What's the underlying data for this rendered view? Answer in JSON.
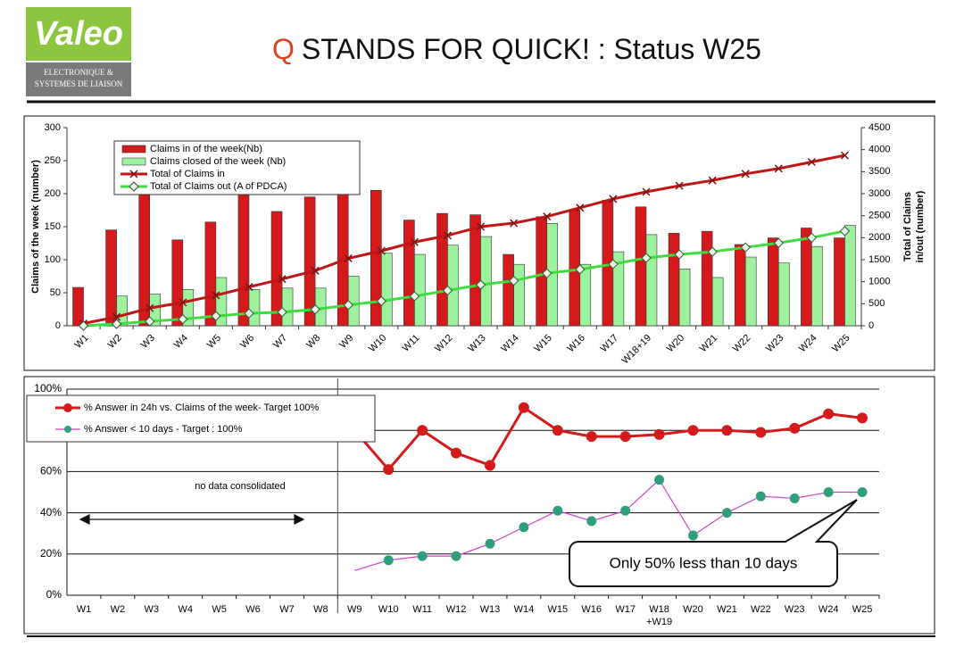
{
  "header": {
    "logo": "Valeo",
    "logo_subtitle": [
      "ELECTRONIQUE &",
      "SYSTEMES DE LIAISON"
    ],
    "title_q": "Q",
    "title_rest": "STANDS FOR QUICK! : Status W25"
  },
  "chart_data": [
    {
      "type": "bar_line",
      "ylabel": "Claims of the week (number)",
      "y2label": [
        "Total of Claims",
        "in/out (number)"
      ],
      "categories": [
        "W1",
        "W2",
        "W3",
        "W4",
        "W5",
        "W6",
        "W7",
        "W8",
        "W9",
        "W10",
        "W11",
        "W12",
        "W13",
        "W14",
        "W15",
        "W16",
        "W17",
        "W18+19",
        "W20",
        "W21",
        "W22",
        "W23",
        "W24",
        "W25"
      ],
      "ylim": [
        0,
        300
      ],
      "yticks": [
        0,
        50,
        100,
        150,
        200,
        250,
        300
      ],
      "y2lim": [
        0,
        4500
      ],
      "y2ticks": [
        0,
        500,
        1000,
        1500,
        2000,
        2500,
        3000,
        3500,
        4000,
        4500
      ],
      "legend": "upper left",
      "series": [
        {
          "name": "Claims in of the week(Nb)",
          "kind": "bar",
          "color": "#d41a1a",
          "values": [
            58,
            145,
            200,
            130,
            157,
            200,
            173,
            195,
            200,
            205,
            160,
            170,
            168,
            108,
            165,
            175,
            190,
            180,
            140,
            143,
            123,
            133,
            148,
            133
          ]
        },
        {
          "name": "Claims closed of the week (Nb)",
          "kind": "bar",
          "color": "#9ef29e",
          "values": [
            0,
            45,
            48,
            55,
            73,
            55,
            57,
            57,
            75,
            110,
            108,
            122,
            135,
            93,
            155,
            93,
            112,
            138,
            86,
            73,
            104,
            95,
            120,
            152
          ]
        },
        {
          "name": "Total of Claims in",
          "kind": "line",
          "axis": "y2",
          "color": "#c01515",
          "marker": "x",
          "values": [
            50,
            200,
            400,
            530,
            690,
            880,
            1060,
            1250,
            1530,
            1700,
            1900,
            2050,
            2250,
            2330,
            2480,
            2680,
            2880,
            3040,
            3180,
            3300,
            3450,
            3570,
            3720,
            3870
          ]
        },
        {
          "name": "Total of Claims out (A of PDCA)",
          "kind": "line",
          "axis": "y2",
          "color": "#3fdc3f",
          "marker": "diamond",
          "values": [
            0,
            40,
            100,
            150,
            220,
            280,
            310,
            370,
            470,
            560,
            670,
            800,
            930,
            1020,
            1190,
            1280,
            1400,
            1540,
            1620,
            1680,
            1780,
            1880,
            2000,
            2150
          ]
        }
      ]
    },
    {
      "type": "line",
      "categories": [
        "W1",
        "W2",
        "W3",
        "W4",
        "W5",
        "W6",
        "W7",
        "W8",
        "W9",
        "W10",
        "W11",
        "W12",
        "W13",
        "W14",
        "W15",
        "W16",
        "W17",
        "W18 +W19",
        "W20",
        "W21",
        "W22",
        "W23",
        "W24",
        "W25"
      ],
      "ylim": [
        0,
        100
      ],
      "yticks": [
        {
          "value": 0,
          "label": "0%"
        },
        {
          "value": 20,
          "label": "20%"
        },
        {
          "value": 40,
          "label": "40%"
        },
        {
          "value": 60,
          "label": "60%"
        },
        {
          "value": 80,
          "label": "80%"
        },
        {
          "value": 100,
          "label": "100%"
        }
      ],
      "grid": true,
      "legend": "upper left",
      "series": [
        {
          "name": "% Answer in 24h vs. Claims of the week- Target 100%",
          "color": "#d41a1a",
          "marker_color": "#d41a1a",
          "values": [
            null,
            null,
            null,
            null,
            null,
            null,
            null,
            null,
            80,
            61,
            80,
            69,
            63,
            91,
            80,
            77,
            77,
            78,
            80,
            80,
            79,
            81,
            88,
            86
          ]
        },
        {
          "name": "% Answer < 10 days - Target : 100%",
          "color": "#cc44cc",
          "marker_color": "#2e9e7e",
          "values": [
            null,
            null,
            null,
            null,
            null,
            null,
            null,
            null,
            12,
            17,
            19,
            19,
            25,
            33,
            41,
            36,
            41,
            56,
            29,
            40,
            48,
            47,
            50,
            50
          ]
        }
      ],
      "annotations": [
        "no data consolidated",
        "Only 50% less than 10 days"
      ]
    }
  ]
}
